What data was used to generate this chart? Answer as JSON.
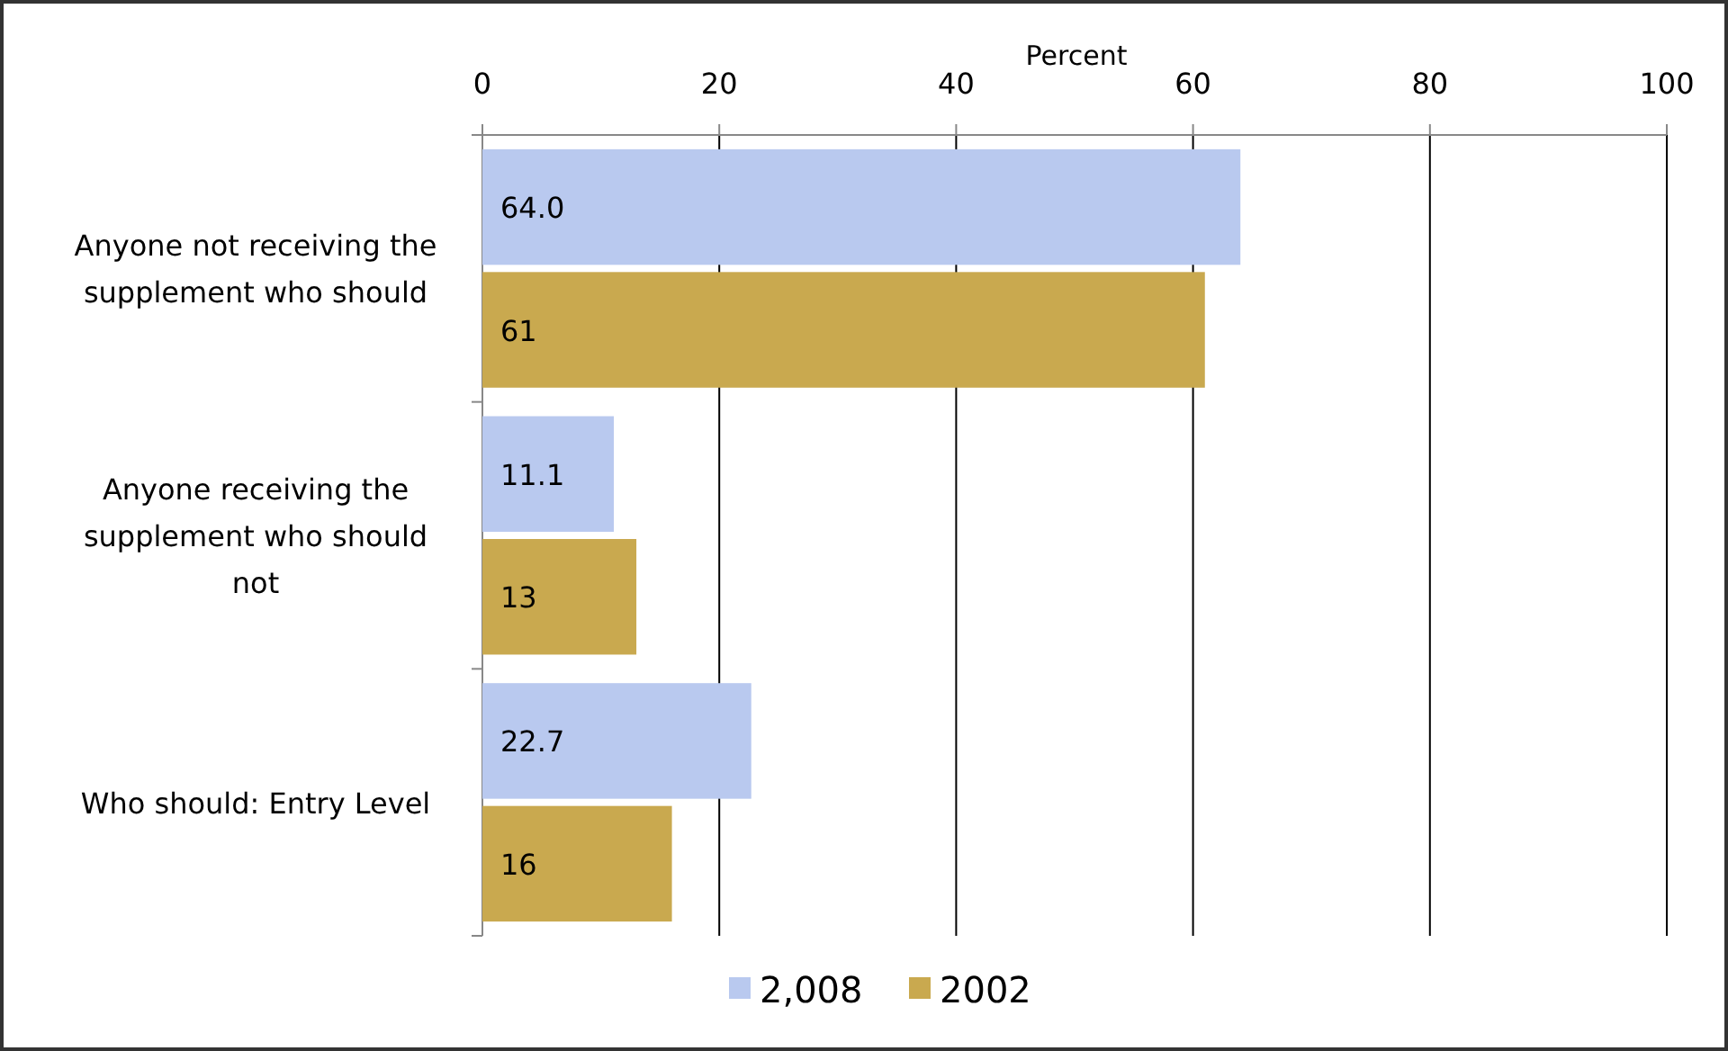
{
  "chart_data": {
    "type": "bar",
    "orientation": "horizontal",
    "xlabel": "Percent",
    "categories": [
      "Anyone not receiving the supplement who should",
      "Anyone receiving the supplement who should not",
      "Who should: Entry Level"
    ],
    "series": [
      {
        "name": "2,008",
        "color": "#b9c9ef",
        "values": [
          64.0,
          11.1,
          22.7
        ],
        "value_labels": [
          "64.0",
          "11.1",
          "22.7"
        ]
      },
      {
        "name": "2002",
        "color": "#c9a94f",
        "values": [
          61,
          13,
          16
        ],
        "value_labels": [
          "61",
          "13",
          "16"
        ]
      }
    ],
    "xlim": [
      0,
      100
    ],
    "xticks": [
      0,
      20,
      40,
      60,
      80,
      100
    ],
    "grid": "x",
    "legend": "bottom"
  }
}
